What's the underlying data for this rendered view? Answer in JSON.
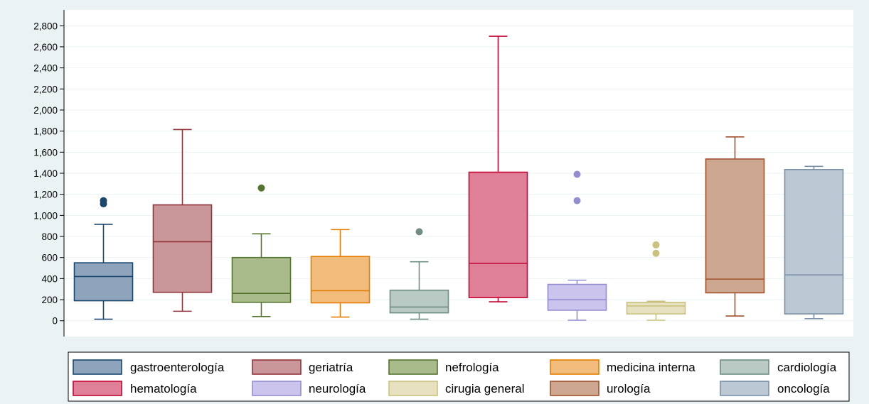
{
  "chart_data": {
    "type": "box",
    "title": "",
    "xlabel": "",
    "ylabel": "",
    "ylim": [
      -150,
      2950
    ],
    "yticks": [
      0,
      200,
      400,
      600,
      800,
      1000,
      1200,
      1400,
      1600,
      1800,
      2000,
      2200,
      2400,
      2600,
      2800
    ],
    "ytick_labels": [
      "0",
      "200",
      "400",
      "600",
      "800",
      "1,000",
      "1,200",
      "1,400",
      "1,600",
      "1,800",
      "2,000",
      "2,200",
      "2,400",
      "2,600",
      "2,800"
    ],
    "grid": true,
    "legend_position": "bottom",
    "series": [
      {
        "name": "gastroenterología",
        "fill": "#8ea4bd",
        "stroke": "#1a476f",
        "whisker_low": 15,
        "q1": 190,
        "median": 420,
        "q3": 550,
        "whisker_high": 915,
        "outliers": [
          1110,
          1140
        ]
      },
      {
        "name": "geriatría",
        "fill": "#c99799",
        "stroke": "#90353b",
        "whisker_low": 90,
        "q1": 270,
        "median": 750,
        "q3": 1100,
        "whisker_high": 1815,
        "outliers": []
      },
      {
        "name": "nefrología",
        "fill": "#a9ba8b",
        "stroke": "#55752f",
        "whisker_low": 40,
        "q1": 175,
        "median": 260,
        "q3": 600,
        "whisker_high": 825,
        "outliers": [
          1260
        ]
      },
      {
        "name": "medicina interna",
        "fill": "#f2bd7c",
        "stroke": "#e37e00",
        "whisker_low": 35,
        "q1": 170,
        "median": 285,
        "q3": 610,
        "whisker_high": 865,
        "outliers": []
      },
      {
        "name": "cardiología",
        "fill": "#b9c9c3",
        "stroke": "#6e8e84",
        "whisker_low": 15,
        "q1": 75,
        "median": 130,
        "q3": 290,
        "whisker_high": 560,
        "outliers": [
          845
        ]
      },
      {
        "name": "hematología",
        "fill": "#e07f98",
        "stroke": "#c10534",
        "whisker_low": 180,
        "q1": 220,
        "median": 545,
        "q3": 1410,
        "whisker_high": 2700,
        "outliers": []
      },
      {
        "name": "neurología",
        "fill": "#cbc4ec",
        "stroke": "#938dd2",
        "whisker_low": 5,
        "q1": 100,
        "median": 200,
        "q3": 345,
        "whisker_high": 385,
        "outliers": [
          1140,
          1390
        ]
      },
      {
        "name": "cirugia general",
        "fill": "#e7e1bf",
        "stroke": "#cac27e",
        "whisker_low": 5,
        "q1": 65,
        "median": 140,
        "q3": 175,
        "whisker_high": 185,
        "outliers": [
          640,
          720
        ]
      },
      {
        "name": "urología",
        "fill": "#cea791",
        "stroke": "#a0522d",
        "whisker_low": 45,
        "q1": 265,
        "median": 395,
        "q3": 1535,
        "whisker_high": 1745,
        "outliers": []
      },
      {
        "name": "oncología",
        "fill": "#bdc8d5",
        "stroke": "#7b92a8",
        "whisker_low": 20,
        "q1": 65,
        "median": 435,
        "q3": 1435,
        "whisker_high": 1465,
        "outliers": []
      }
    ]
  }
}
